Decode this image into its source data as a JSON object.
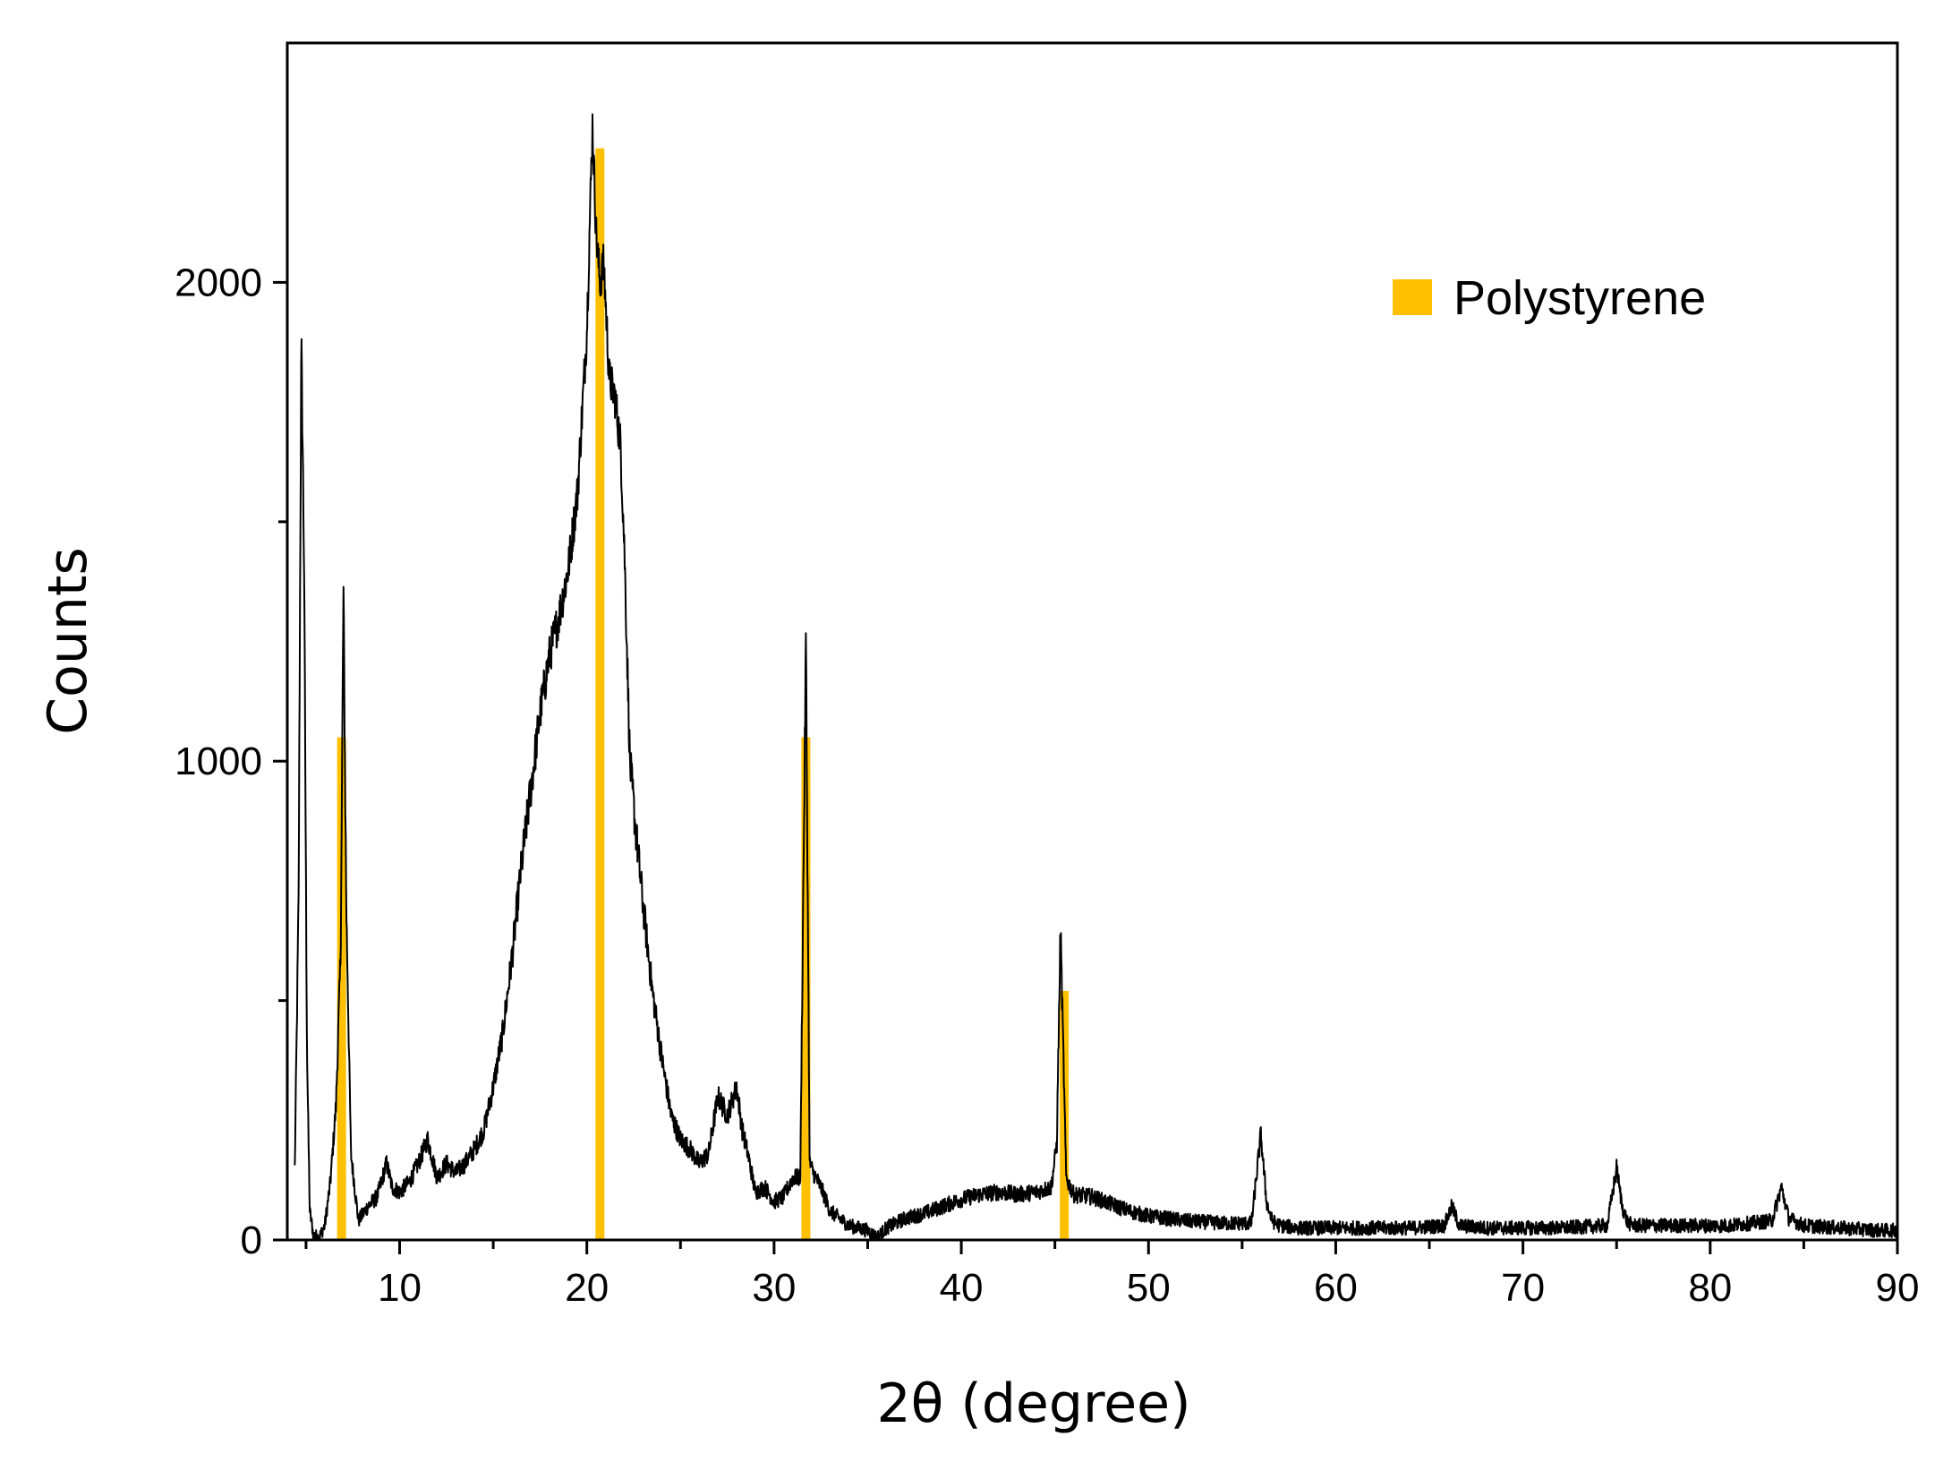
{
  "chart_data": {
    "type": "line",
    "title": "",
    "xlabel": "2θ (degree)",
    "ylabel": "Counts",
    "xlim": [
      4,
      90
    ],
    "ylim": [
      0,
      2500
    ],
    "grid": false,
    "legend_position": "top-right",
    "x_ticks": [
      10,
      20,
      30,
      40,
      50,
      60,
      70,
      80,
      90
    ],
    "x_tick_labels": [
      "10",
      "20",
      "30",
      "40",
      "50",
      "60",
      "70",
      "80",
      "90"
    ],
    "x_minor_ticks": [
      5,
      15,
      25,
      35,
      45,
      55,
      65,
      75,
      85
    ],
    "y_ticks": [
      0,
      1000,
      2000
    ],
    "y_tick_labels": [
      "0",
      "1000",
      "2000"
    ],
    "y_minor_ticks": [
      500,
      1500
    ],
    "pattern": {
      "name": "",
      "color": "#000000",
      "x": [
        4.4,
        4.6,
        4.75,
        4.9,
        5.05,
        5.2,
        5.4,
        5.7,
        6.0,
        6.3,
        6.6,
        6.85,
        7.0,
        7.15,
        7.4,
        7.8,
        8.3,
        8.8,
        9.3,
        9.6,
        10.0,
        10.5,
        11.0,
        11.5,
        12.0,
        12.5,
        13.0,
        13.5,
        14.0,
        14.5,
        15.0,
        15.5,
        16.0,
        16.5,
        17.0,
        17.5,
        18.0,
        18.5,
        19.0,
        19.5,
        20.0,
        20.3,
        20.5,
        20.7,
        20.9,
        21.2,
        21.5,
        21.8,
        22.0,
        22.3,
        22.6,
        23.0,
        23.5,
        24.0,
        24.5,
        25.0,
        25.5,
        26.0,
        26.5,
        27.0,
        27.5,
        28.0,
        28.3,
        28.6,
        29.0,
        29.5,
        30.0,
        30.5,
        31.0,
        31.4,
        31.7,
        31.9,
        32.1,
        32.5,
        33.0,
        34.0,
        35.0,
        35.5,
        36.0,
        37.0,
        38.0,
        39.0,
        40.0,
        41.0,
        42.0,
        43.0,
        44.0,
        44.8,
        45.1,
        45.3,
        45.6,
        46.0,
        47.0,
        48.0,
        49.0,
        50.0,
        52.0,
        54.0,
        55.5,
        56.0,
        56.3,
        56.6,
        57.0,
        58.0,
        60.0,
        62.0,
        64.0,
        65.8,
        66.2,
        66.6,
        68.0,
        70.0,
        72.0,
        74.5,
        75.0,
        75.3,
        75.6,
        76.0,
        77.0,
        79.0,
        81.0,
        83.3,
        83.8,
        84.2,
        85.0,
        87.0,
        89.0,
        90.0
      ],
      "y": [
        150,
        700,
        1880,
        1400,
        400,
        60,
        10,
        5,
        30,
        120,
        280,
        600,
        1350,
        700,
        180,
        40,
        70,
        90,
        160,
        110,
        100,
        120,
        160,
        210,
        130,
        160,
        140,
        160,
        190,
        230,
        320,
        430,
        590,
        780,
        940,
        1100,
        1220,
        1300,
        1400,
        1560,
        1900,
        2330,
        2100,
        2000,
        2040,
        1800,
        1760,
        1660,
        1450,
        1000,
        860,
        700,
        520,
        380,
        260,
        210,
        190,
        160,
        180,
        300,
        260,
        320,
        230,
        180,
        100,
        110,
        80,
        90,
        130,
        130,
        1250,
        160,
        140,
        110,
        60,
        30,
        20,
        5,
        25,
        45,
        55,
        70,
        85,
        95,
        100,
        95,
        100,
        110,
        200,
        650,
        130,
        95,
        90,
        75,
        60,
        50,
        40,
        35,
        35,
        220,
        80,
        40,
        30,
        25,
        25,
        25,
        25,
        30,
        70,
        30,
        25,
        25,
        25,
        30,
        150,
        70,
        35,
        30,
        30,
        30,
        30,
        40,
        110,
        45,
        30,
        25,
        20,
        20
      ]
    },
    "reference": {
      "name": "Polystyrene",
      "color": "#FFC000",
      "x": [
        6.9,
        20.7,
        31.7,
        45.5
      ],
      "y": [
        1050,
        2280,
        1050,
        520
      ]
    }
  }
}
